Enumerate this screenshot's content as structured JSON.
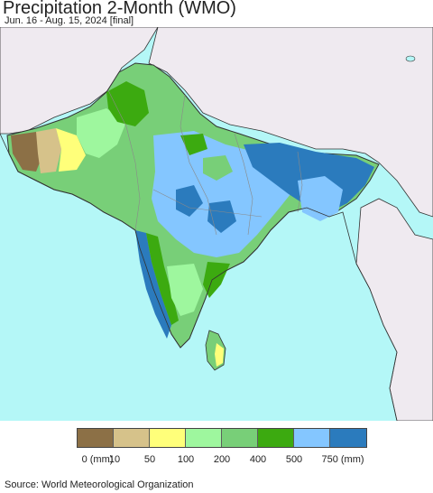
{
  "header": {
    "title": "Precipitation 2-Month (WMO)",
    "subtitle": "Jun. 16 - Aug. 15, 2024 [final]"
  },
  "map": {
    "colors": {
      "ocean": "#b4f7f7",
      "land_outside": "#efeaf0",
      "border": "#333333",
      "internal_border": "#8a8a8a"
    }
  },
  "legend": {
    "colors": [
      "#8c7046",
      "#d6c28a",
      "#ffff7a",
      "#9ef79e",
      "#78cf78",
      "#3caa10",
      "#84c6ff",
      "#2b7bbd"
    ],
    "labels": [
      "0 (mm)",
      "10",
      "50",
      "100",
      "200",
      "400",
      "500",
      "750 (mm)"
    ]
  },
  "footer": {
    "source": "Source: World Meteorological Organization"
  }
}
